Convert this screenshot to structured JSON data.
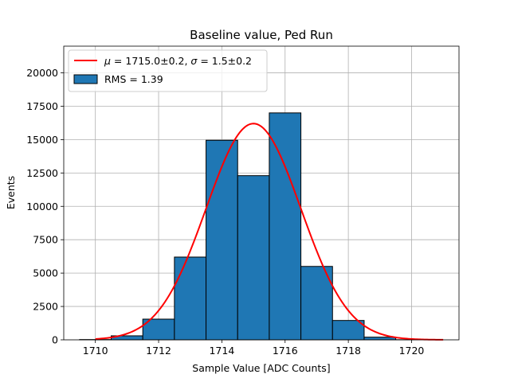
{
  "chart_data": {
    "type": "bar",
    "title": "Baseline value, Ped Run",
    "xlabel": "Sample Value [ADC Counts]",
    "ylabel": "Events",
    "xlim": [
      1709,
      1721.5
    ],
    "ylim": [
      0,
      22000
    ],
    "grid": true,
    "legend_position": "top-left",
    "xticks": [
      1710,
      1712,
      1714,
      1716,
      1718,
      1720
    ],
    "yticks": [
      0,
      2500,
      5000,
      7500,
      10000,
      12500,
      15000,
      17500,
      20000
    ],
    "bins": [
      {
        "left": 1709.5,
        "right": 1710.5,
        "count": 20
      },
      {
        "left": 1710.5,
        "right": 1711.5,
        "count": 300
      },
      {
        "left": 1711.5,
        "right": 1712.5,
        "count": 1550
      },
      {
        "left": 1712.5,
        "right": 1713.5,
        "count": 6200
      },
      {
        "left": 1713.5,
        "right": 1714.5,
        "count": 14950
      },
      {
        "left": 1714.5,
        "right": 1715.5,
        "count": 12300
      },
      {
        "left": 1715.5,
        "right": 1716.5,
        "count": 17000
      },
      {
        "left": 1716.5,
        "right": 1717.5,
        "count": 5500
      },
      {
        "left": 1717.5,
        "right": 1718.5,
        "count": 1450
      },
      {
        "left": 1718.5,
        "right": 1719.5,
        "count": 200
      },
      {
        "left": 1719.5,
        "right": 1720.5,
        "count": 10
      }
    ],
    "fit": {
      "mu": 1715.0,
      "sigma": 1.5,
      "amplitude": 16200,
      "x_range": [
        1710,
        1721
      ]
    },
    "legend": {
      "fit_mu_symbol": "μ",
      "fit_mu_text": " = 1715.0±0.2, ",
      "fit_sigma_symbol": "σ",
      "fit_sigma_text": " = 1.5±0.2",
      "hist_label": "RMS = 1.39"
    },
    "colors": {
      "bar_fill": "#1f77b4",
      "bar_edge": "#000000",
      "fit_line": "#ff0000",
      "grid": "#b0b0b0"
    }
  }
}
